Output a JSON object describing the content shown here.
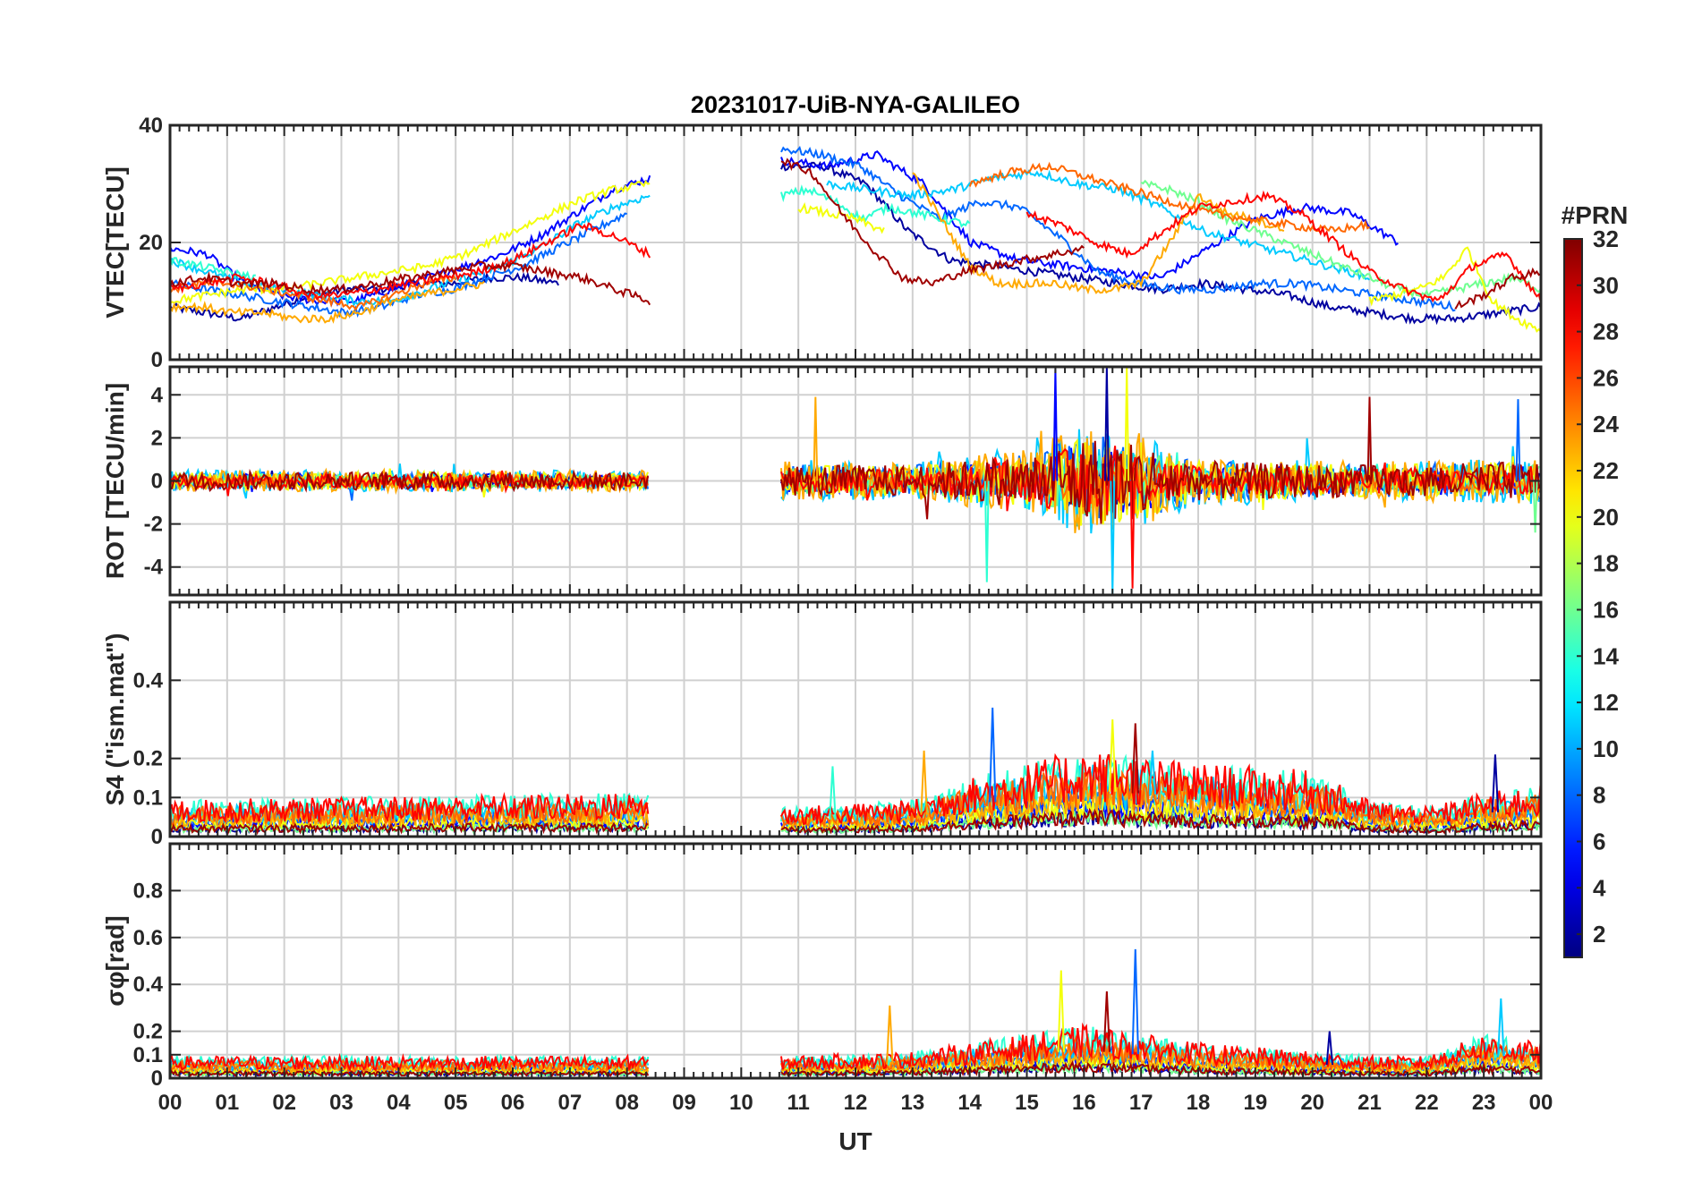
{
  "chart_data": {
    "type": "line",
    "title": "20231017-UiB-NYA-GALILEO",
    "xlabel": "UT",
    "x_ticks": [
      "00",
      "01",
      "02",
      "03",
      "04",
      "05",
      "06",
      "07",
      "08",
      "09",
      "10",
      "11",
      "12",
      "13",
      "14",
      "15",
      "16",
      "17",
      "18",
      "19",
      "20",
      "21",
      "22",
      "23",
      "00"
    ],
    "xlim": [
      0,
      24
    ],
    "data_gaps": [
      [
        8.4,
        10.7
      ]
    ],
    "colorbar": {
      "label": "#PRN",
      "colormap": "jet",
      "range": [
        1,
        32
      ],
      "ticks": [
        "2",
        "4",
        "6",
        "8",
        "10",
        "12",
        "14",
        "16",
        "18",
        "20",
        "22",
        "24",
        "26",
        "28",
        "30",
        "32"
      ]
    },
    "panels": [
      {
        "id": "vtec",
        "ylabel": "VTEC[TECU]",
        "ylim": [
          0,
          40
        ],
        "yticks": [
          0,
          20,
          40
        ],
        "ytick_labels": [
          "0",
          "20",
          "40"
        ],
        "series": [
          {
            "prn": 2,
            "segments": [
              {
                "t0": 0.0,
                "t1": 6.8,
                "levels": [
                  9,
                  8,
                  7,
                  9,
                  11,
                  12,
                  12,
                  13,
                  13,
                  14,
                  14,
                  13
                ]
              },
              {
                "t0": 10.7,
                "t1": 24.0,
                "levels": [
                  33,
                  33,
                  30,
                  22,
                  17,
                  16,
                  15,
                  14,
                  13,
                  12,
                  13,
                  12,
                  11,
                  9,
                  8,
                  7,
                  7,
                  8,
                  9
                ]
              }
            ]
          },
          {
            "prn": 5,
            "segments": [
              {
                "t0": 0.0,
                "t1": 8.4,
                "levels": [
                  19,
                  18,
                  13,
                  11,
                  10,
                  10,
                  12,
                  14,
                  16,
                  18,
                  21,
                  25,
                  29,
                  31
                ]
              },
              {
                "t0": 10.7,
                "t1": 21.5,
                "levels": [
                  34,
                  33,
                  35,
                  30,
                  20,
                  17,
                  16,
                  15,
                  14,
                  19,
                  24,
                  26,
                  25,
                  20
                ]
              }
            ]
          },
          {
            "prn": 8,
            "segments": [
              {
                "t0": 0.0,
                "t1": 8.0,
                "levels": [
                  13,
                  12,
                  11,
                  10,
                  9,
                  8,
                  9,
                  11,
                  12,
                  14,
                  16,
                  19,
                  22,
                  25
                ]
              },
              {
                "t0": 10.7,
                "t1": 22.5,
                "levels": [
                  36,
                  35,
                  33,
                  28,
                  24,
                  27,
                  26,
                  21,
                  15,
                  13,
                  12,
                  12,
                  13,
                  13,
                  12,
                  11,
                  10,
                  9
                ]
              }
            ]
          },
          {
            "prn": 11,
            "segments": [
              {
                "t0": 0.0,
                "t1": 8.4,
                "levels": [
                  17,
                  15,
                  13,
                  12,
                  11,
                  10,
                  10,
                  12,
                  14,
                  16,
                  19,
                  23,
                  26,
                  28
                ]
              },
              {
                "t0": 11.5,
                "t1": 21.0,
                "levels": [
                  30,
                  29,
                  28,
                  29,
                  31,
                  32,
                  30,
                  29,
                  26,
                  22,
                  20,
                  18,
                  16,
                  14
                ]
              }
            ]
          },
          {
            "prn": 14,
            "segments": [
              {
                "t0": 0.0,
                "t1": 1.5,
                "levels": [
                  17,
                  16,
                  15,
                  14
                ]
              },
              {
                "t0": 10.7,
                "t1": 14.0,
                "levels": [
                  28,
                  29,
                  27,
                  24,
                  26,
                  25,
                  24,
                  23
                ]
              }
            ]
          },
          {
            "prn": 16,
            "segments": [
              {
                "t0": 17.0,
                "t1": 24.0,
                "levels": [
                  30,
                  29,
                  27,
                  24,
                  22,
                  20,
                  18,
                  16,
                  14,
                  12,
                  11,
                  12,
                  13,
                  14,
                  12
                ]
              }
            ]
          },
          {
            "prn": 20,
            "segments": [
              {
                "t0": 0.0,
                "t1": 8.4,
                "levels": [
                  10,
                  11,
                  12,
                  12,
                  13,
                  14,
                  15,
                  16,
                  18,
                  21,
                  24,
                  27,
                  29,
                  30
                ]
              },
              {
                "t0": 11.0,
                "t1": 12.5,
                "levels": [
                  26,
                  25,
                  24,
                  22
                ]
              },
              {
                "t0": 21.0,
                "t1": 24.0,
                "levels": [
                  10,
                  11,
                  12,
                  14,
                  19,
                  10,
                  7,
                  5
                ]
              }
            ]
          },
          {
            "prn": 23,
            "segments": [
              {
                "t0": 0.0,
                "t1": 5.5,
                "levels": [
                  9,
                  9,
                  8,
                  8,
                  7,
                  7,
                  8,
                  10,
                  11,
                  12,
                  13
                ]
              },
              {
                "t0": 13.0,
                "t1": 19.5,
                "levels": [
                  32,
                  24,
                  16,
                  13,
                  13,
                  13,
                  12,
                  12,
                  13,
                  20,
                  28,
                  25,
                  24,
                  22
                ]
              }
            ]
          },
          {
            "prn": 25,
            "segments": [
              {
                "t0": 0.0,
                "t1": 5.0,
                "levels": [
                  12,
                  13,
                  13,
                  12,
                  11,
                  10,
                  9,
                  11,
                  13,
                  14
                ]
              },
              {
                "t0": 14.0,
                "t1": 21.0,
                "levels": [
                  30,
                  32,
                  33,
                  31,
                  29,
                  27,
                  25,
                  24,
                  23,
                  22,
                  23
                ]
              }
            ]
          },
          {
            "prn": 28,
            "segments": [
              {
                "t0": 0.0,
                "t1": 8.4,
                "levels": [
                  12,
                  13,
                  14,
                  13,
                  11,
                  11,
                  12,
                  13,
                  14,
                  15,
                  17,
                  20,
                  23,
                  21,
                  18
                ]
              },
              {
                "t0": 15.0,
                "t1": 24.0,
                "levels": [
                  25,
                  23,
                  20,
                  18,
                  22,
                  26,
                  27,
                  28,
                  25,
                  20,
                  15,
                  12,
                  10,
                  16,
                  18,
                  10
                ]
              }
            ]
          },
          {
            "prn": 31,
            "segments": [
              {
                "t0": 0.0,
                "t1": 8.4,
                "levels": [
                  13,
                  14,
                  13,
                  13,
                  12,
                  12,
                  13,
                  14,
                  15,
                  16,
                  16,
                  15,
                  14,
                  12,
                  10
                ]
              },
              {
                "t0": 10.7,
                "t1": 16.0,
                "levels": [
                  34,
                  32,
                  25,
                  19,
                  14,
                  13,
                  15,
                  16,
                  17,
                  18,
                  19
                ]
              },
              {
                "t0": 22.5,
                "t1": 24.0,
                "levels": [
                  9,
                  11,
                  14,
                  15
                ]
              }
            ]
          }
        ]
      },
      {
        "id": "rot",
        "ylabel": "ROT [TECU/min]",
        "ylim": [
          -5.3,
          5.3
        ],
        "yticks": [
          -4,
          -2,
          0,
          2,
          4
        ],
        "ytick_labels": [
          "-4",
          "-2",
          "0",
          "2",
          "4"
        ],
        "noise_profile": {
          "hours": [
            0,
            8.4,
            10.7,
            13,
            15,
            16,
            17,
            18,
            21,
            24
          ],
          "amplitude": [
            0.5,
            0.5,
            0.9,
            0.9,
            1.5,
            2.6,
            2.2,
            1.1,
            0.9,
            1.1
          ]
        },
        "peak_spikes": [
          {
            "t": 16.4,
            "value": 5.3
          },
          {
            "t": 16.5,
            "value": -5.3
          },
          {
            "t": 16.75,
            "value": 5.3
          },
          {
            "t": 16.85,
            "value": -5.0
          },
          {
            "t": 15.5,
            "value": 5.2
          },
          {
            "t": 14.3,
            "value": -4.7
          },
          {
            "t": 11.3,
            "value": 3.9
          },
          {
            "t": 21.0,
            "value": 3.9
          },
          {
            "t": 23.6,
            "value": 3.8
          },
          {
            "t": 23.9,
            "value": -2.4
          }
        ]
      },
      {
        "id": "s4",
        "ylabel": "S4 (\"ism.mat\")",
        "ylim": [
          0,
          0.6
        ],
        "yticks": [
          0,
          0.1,
          0.2,
          0.4
        ],
        "ytick_labels": [
          "0",
          "0.1",
          "0.2",
          "0.4"
        ],
        "baseline_profile": {
          "hours": [
            0,
            8.4,
            10.7,
            13,
            14,
            15,
            16,
            17,
            18,
            20,
            21,
            22,
            23,
            24
          ],
          "level": [
            0.05,
            0.06,
            0.04,
            0.05,
            0.08,
            0.1,
            0.12,
            0.11,
            0.1,
            0.09,
            0.05,
            0.04,
            0.06,
            0.07
          ]
        },
        "peaks": [
          {
            "t": 14.4,
            "value": 0.33
          },
          {
            "t": 16.5,
            "value": 0.3
          },
          {
            "t": 16.9,
            "value": 0.29
          },
          {
            "t": 17.2,
            "value": 0.22
          },
          {
            "t": 13.2,
            "value": 0.22
          },
          {
            "t": 23.2,
            "value": 0.21
          },
          {
            "t": 11.6,
            "value": 0.18
          }
        ]
      },
      {
        "id": "sigma_phi",
        "ylabel": "σφ[rad]",
        "ylim": [
          0,
          1.0
        ],
        "yticks": [
          0,
          0.1,
          0.2,
          0.4,
          0.6,
          0.8
        ],
        "ytick_labels": [
          "0",
          "0.1",
          "0.2",
          "0.4",
          "0.6",
          "0.8"
        ],
        "baseline_profile": {
          "hours": [
            0,
            8.4,
            10.7,
            13,
            15,
            16,
            17,
            18,
            21,
            22,
            23,
            24
          ],
          "level": [
            0.05,
            0.05,
            0.05,
            0.06,
            0.1,
            0.12,
            0.1,
            0.08,
            0.05,
            0.05,
            0.1,
            0.08
          ]
        },
        "peaks": [
          {
            "t": 16.9,
            "value": 0.55
          },
          {
            "t": 15.6,
            "value": 0.46
          },
          {
            "t": 16.4,
            "value": 0.37
          },
          {
            "t": 23.3,
            "value": 0.34
          },
          {
            "t": 12.6,
            "value": 0.31
          },
          {
            "t": 20.3,
            "value": 0.2
          }
        ]
      }
    ]
  }
}
